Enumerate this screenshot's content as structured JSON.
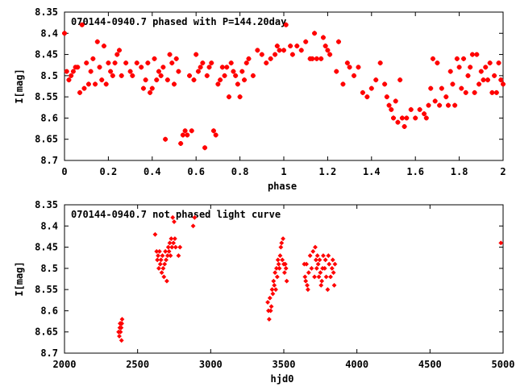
{
  "colors": {
    "points": "#ff0000",
    "frame": "#000000",
    "background": "#ffffff"
  },
  "chart_data": [
    {
      "type": "scatter",
      "title": "070144-0940.7 phased with P=144.20day",
      "xlabel": "phase",
      "ylabel": "I[mag]",
      "xlim": [
        0,
        2
      ],
      "ylim": [
        8.35,
        8.7
      ],
      "y_inverted": true,
      "grid": false,
      "xticks": [
        "0",
        "0.2",
        "0.4",
        "0.6",
        "0.8",
        "1",
        "1.2",
        "1.4",
        "1.6",
        "1.8",
        "2"
      ],
      "yticks": [
        "8.35",
        "8.4",
        "8.45",
        "8.5",
        "8.55",
        "8.6",
        "8.65",
        "8.7"
      ],
      "series": [
        {
          "points": [
            [
              0.0,
              8.4
            ],
            [
              0.01,
              8.49
            ],
            [
              0.02,
              8.51
            ],
            [
              0.03,
              8.5
            ],
            [
              0.04,
              8.49
            ],
            [
              0.05,
              8.48
            ],
            [
              0.06,
              8.48
            ],
            [
              0.07,
              8.54
            ],
            [
              0.08,
              8.38
            ],
            [
              0.09,
              8.53
            ],
            [
              0.1,
              8.47
            ],
            [
              0.11,
              8.52
            ],
            [
              0.12,
              8.49
            ],
            [
              0.13,
              8.46
            ],
            [
              0.14,
              8.52
            ],
            [
              0.15,
              8.42
            ],
            [
              0.16,
              8.48
            ],
            [
              0.17,
              8.51
            ],
            [
              0.18,
              8.43
            ],
            [
              0.19,
              8.52
            ],
            [
              0.2,
              8.47
            ],
            [
              0.21,
              8.49
            ],
            [
              0.22,
              8.5
            ],
            [
              0.23,
              8.47
            ],
            [
              0.24,
              8.45
            ],
            [
              0.25,
              8.44
            ],
            [
              0.26,
              8.5
            ],
            [
              0.28,
              8.47
            ],
            [
              0.3,
              8.49
            ],
            [
              0.31,
              8.5
            ],
            [
              0.33,
              8.47
            ],
            [
              0.35,
              8.48
            ],
            [
              0.36,
              8.53
            ],
            [
              0.37,
              8.51
            ],
            [
              0.38,
              8.47
            ],
            [
              0.39,
              8.54
            ],
            [
              0.4,
              8.53
            ],
            [
              0.41,
              8.46
            ],
            [
              0.42,
              8.51
            ],
            [
              0.43,
              8.49
            ],
            [
              0.44,
              8.5
            ],
            [
              0.45,
              8.48
            ],
            [
              0.46,
              8.65
            ],
            [
              0.47,
              8.51
            ],
            [
              0.48,
              8.45
            ],
            [
              0.49,
              8.47
            ],
            [
              0.5,
              8.52
            ],
            [
              0.51,
              8.46
            ],
            [
              0.52,
              8.49
            ],
            [
              0.53,
              8.66
            ],
            [
              0.54,
              8.64
            ],
            [
              0.55,
              8.63
            ],
            [
              0.56,
              8.64
            ],
            [
              0.57,
              8.5
            ],
            [
              0.58,
              8.63
            ],
            [
              0.59,
              8.51
            ],
            [
              0.6,
              8.45
            ],
            [
              0.61,
              8.49
            ],
            [
              0.62,
              8.48
            ],
            [
              0.63,
              8.47
            ],
            [
              0.64,
              8.67
            ],
            [
              0.65,
              8.5
            ],
            [
              0.66,
              8.48
            ],
            [
              0.67,
              8.47
            ],
            [
              0.68,
              8.63
            ],
            [
              0.69,
              8.64
            ],
            [
              0.7,
              8.52
            ],
            [
              0.71,
              8.51
            ],
            [
              0.72,
              8.48
            ],
            [
              0.73,
              8.5
            ],
            [
              0.74,
              8.48
            ],
            [
              0.75,
              8.55
            ],
            [
              0.76,
              8.47
            ],
            [
              0.77,
              8.49
            ],
            [
              0.78,
              8.5
            ],
            [
              0.79,
              8.52
            ],
            [
              0.8,
              8.55
            ],
            [
              0.81,
              8.49
            ],
            [
              0.82,
              8.51
            ],
            [
              0.83,
              8.47
            ],
            [
              0.84,
              8.46
            ],
            [
              0.86,
              8.5
            ],
            [
              0.88,
              8.44
            ],
            [
              0.9,
              8.45
            ],
            [
              0.92,
              8.47
            ],
            [
              0.94,
              8.46
            ],
            [
              0.96,
              8.45
            ],
            [
              0.97,
              8.43
            ],
            [
              0.98,
              8.44
            ],
            [
              1.0,
              8.44
            ],
            [
              1.01,
              8.38
            ],
            [
              1.03,
              8.43
            ],
            [
              1.04,
              8.45
            ],
            [
              1.06,
              8.43
            ],
            [
              1.08,
              8.44
            ],
            [
              1.1,
              8.42
            ],
            [
              1.12,
              8.46
            ],
            [
              1.13,
              8.46
            ],
            [
              1.14,
              8.4
            ],
            [
              1.15,
              8.46
            ],
            [
              1.17,
              8.46
            ],
            [
              1.18,
              8.41
            ],
            [
              1.19,
              8.43
            ],
            [
              1.2,
              8.44
            ],
            [
              1.21,
              8.45
            ],
            [
              1.24,
              8.49
            ],
            [
              1.25,
              8.42
            ],
            [
              1.27,
              8.52
            ],
            [
              1.29,
              8.47
            ],
            [
              1.3,
              8.48
            ],
            [
              1.32,
              8.5
            ],
            [
              1.34,
              8.48
            ],
            [
              1.36,
              8.54
            ],
            [
              1.38,
              8.55
            ],
            [
              1.4,
              8.53
            ],
            [
              1.42,
              8.51
            ],
            [
              1.44,
              8.47
            ],
            [
              1.46,
              8.52
            ],
            [
              1.47,
              8.55
            ],
            [
              1.48,
              8.57
            ],
            [
              1.49,
              8.58
            ],
            [
              1.5,
              8.6
            ],
            [
              1.51,
              8.56
            ],
            [
              1.52,
              8.61
            ],
            [
              1.53,
              8.51
            ],
            [
              1.54,
              8.6
            ],
            [
              1.55,
              8.62
            ],
            [
              1.56,
              8.6
            ],
            [
              1.58,
              8.58
            ],
            [
              1.6,
              8.6
            ],
            [
              1.62,
              8.58
            ],
            [
              1.64,
              8.59
            ],
            [
              1.65,
              8.6
            ],
            [
              1.66,
              8.57
            ],
            [
              1.67,
              8.53
            ],
            [
              1.68,
              8.46
            ],
            [
              1.69,
              8.56
            ],
            [
              1.7,
              8.47
            ],
            [
              1.71,
              8.57
            ],
            [
              1.72,
              8.53
            ],
            [
              1.74,
              8.55
            ],
            [
              1.75,
              8.57
            ],
            [
              1.76,
              8.49
            ],
            [
              1.77,
              8.52
            ],
            [
              1.78,
              8.57
            ],
            [
              1.79,
              8.46
            ],
            [
              1.8,
              8.48
            ],
            [
              1.81,
              8.53
            ],
            [
              1.82,
              8.46
            ],
            [
              1.83,
              8.54
            ],
            [
              1.84,
              8.5
            ],
            [
              1.85,
              8.48
            ],
            [
              1.86,
              8.45
            ],
            [
              1.87,
              8.54
            ],
            [
              1.88,
              8.45
            ],
            [
              1.89,
              8.52
            ],
            [
              1.9,
              8.49
            ],
            [
              1.91,
              8.51
            ],
            [
              1.92,
              8.48
            ],
            [
              1.93,
              8.51
            ],
            [
              1.94,
              8.47
            ],
            [
              1.95,
              8.54
            ],
            [
              1.96,
              8.5
            ],
            [
              1.97,
              8.54
            ],
            [
              1.98,
              8.47
            ],
            [
              1.99,
              8.51
            ],
            [
              2.0,
              8.52
            ]
          ]
        }
      ]
    },
    {
      "type": "scatter",
      "title": "070144-0940.7 not phased light curve",
      "xlabel": "hjd0",
      "ylabel": "I[mag]",
      "xlim": [
        2000,
        5000
      ],
      "ylim": [
        8.35,
        8.7
      ],
      "y_inverted": true,
      "grid": false,
      "xticks": [
        "2000",
        "2500",
        "3000",
        "3500",
        "4000",
        "4500",
        "5000"
      ],
      "yticks": [
        "8.35",
        "8.4",
        "8.45",
        "8.5",
        "8.55",
        "8.6",
        "8.65",
        "8.7"
      ],
      "series": [
        {
          "points": [
            [
              2370,
              8.65
            ],
            [
              2375,
              8.66
            ],
            [
              2378,
              8.64
            ],
            [
              2380,
              8.63
            ],
            [
              2383,
              8.65
            ],
            [
              2385,
              8.63
            ],
            [
              2388,
              8.64
            ],
            [
              2390,
              8.67
            ],
            [
              2392,
              8.63
            ],
            [
              2394,
              8.62
            ],
            [
              2620,
              8.42
            ],
            [
              2630,
              8.46
            ],
            [
              2635,
              8.48
            ],
            [
              2640,
              8.47
            ],
            [
              2645,
              8.5
            ],
            [
              2650,
              8.46
            ],
            [
              2655,
              8.49
            ],
            [
              2660,
              8.48
            ],
            [
              2665,
              8.51
            ],
            [
              2670,
              8.47
            ],
            [
              2675,
              8.5
            ],
            [
              2680,
              8.52
            ],
            [
              2685,
              8.49
            ],
            [
              2690,
              8.46
            ],
            [
              2695,
              8.48
            ],
            [
              2700,
              8.53
            ],
            [
              2705,
              8.47
            ],
            [
              2710,
              8.45
            ],
            [
              2715,
              8.46
            ],
            [
              2720,
              8.44
            ],
            [
              2725,
              8.47
            ],
            [
              2730,
              8.43
            ],
            [
              2735,
              8.45
            ],
            [
              2740,
              8.38
            ],
            [
              2745,
              8.44
            ],
            [
              2750,
              8.39
            ],
            [
              2755,
              8.43
            ],
            [
              2760,
              8.45
            ],
            [
              2780,
              8.47
            ],
            [
              2790,
              8.45
            ],
            [
              2880,
              8.4
            ],
            [
              2890,
              8.38
            ],
            [
              3390,
              8.58
            ],
            [
              3395,
              8.6
            ],
            [
              3400,
              8.62
            ],
            [
              3405,
              8.57
            ],
            [
              3410,
              8.6
            ],
            [
              3415,
              8.59
            ],
            [
              3420,
              8.55
            ],
            [
              3425,
              8.56
            ],
            [
              3430,
              8.53
            ],
            [
              3435,
              8.54
            ],
            [
              3440,
              8.51
            ],
            [
              3445,
              8.55
            ],
            [
              3450,
              8.5
            ],
            [
              3455,
              8.52
            ],
            [
              3460,
              8.48
            ],
            [
              3465,
              8.49
            ],
            [
              3470,
              8.5
            ],
            [
              3475,
              8.47
            ],
            [
              3480,
              8.45
            ],
            [
              3485,
              8.44
            ],
            [
              3490,
              8.48
            ],
            [
              3495,
              8.43
            ],
            [
              3500,
              8.49
            ],
            [
              3505,
              8.51
            ],
            [
              3510,
              8.49
            ],
            [
              3515,
              8.5
            ],
            [
              3520,
              8.53
            ],
            [
              3640,
              8.49
            ],
            [
              3645,
              8.52
            ],
            [
              3650,
              8.53
            ],
            [
              3655,
              8.49
            ],
            [
              3660,
              8.54
            ],
            [
              3665,
              8.55
            ],
            [
              3670,
              8.51
            ],
            [
              3680,
              8.47
            ],
            [
              3690,
              8.5
            ],
            [
              3700,
              8.46
            ],
            [
              3710,
              8.52
            ],
            [
              3715,
              8.45
            ],
            [
              3720,
              8.48
            ],
            [
              3725,
              8.5
            ],
            [
              3730,
              8.47
            ],
            [
              3735,
              8.49
            ],
            [
              3740,
              8.52
            ],
            [
              3745,
              8.48
            ],
            [
              3750,
              8.51
            ],
            [
              3755,
              8.54
            ],
            [
              3760,
              8.53
            ],
            [
              3765,
              8.5
            ],
            [
              3770,
              8.47
            ],
            [
              3780,
              8.5
            ],
            [
              3785,
              8.48
            ],
            [
              3790,
              8.52
            ],
            [
              3800,
              8.55
            ],
            [
              3805,
              8.47
            ],
            [
              3810,
              8.49
            ],
            [
              3820,
              8.52
            ],
            [
              3830,
              8.5
            ],
            [
              3835,
              8.48
            ],
            [
              3840,
              8.51
            ],
            [
              3845,
              8.54
            ],
            [
              3850,
              8.49
            ],
            [
              4985,
              8.44
            ]
          ]
        }
      ]
    }
  ]
}
